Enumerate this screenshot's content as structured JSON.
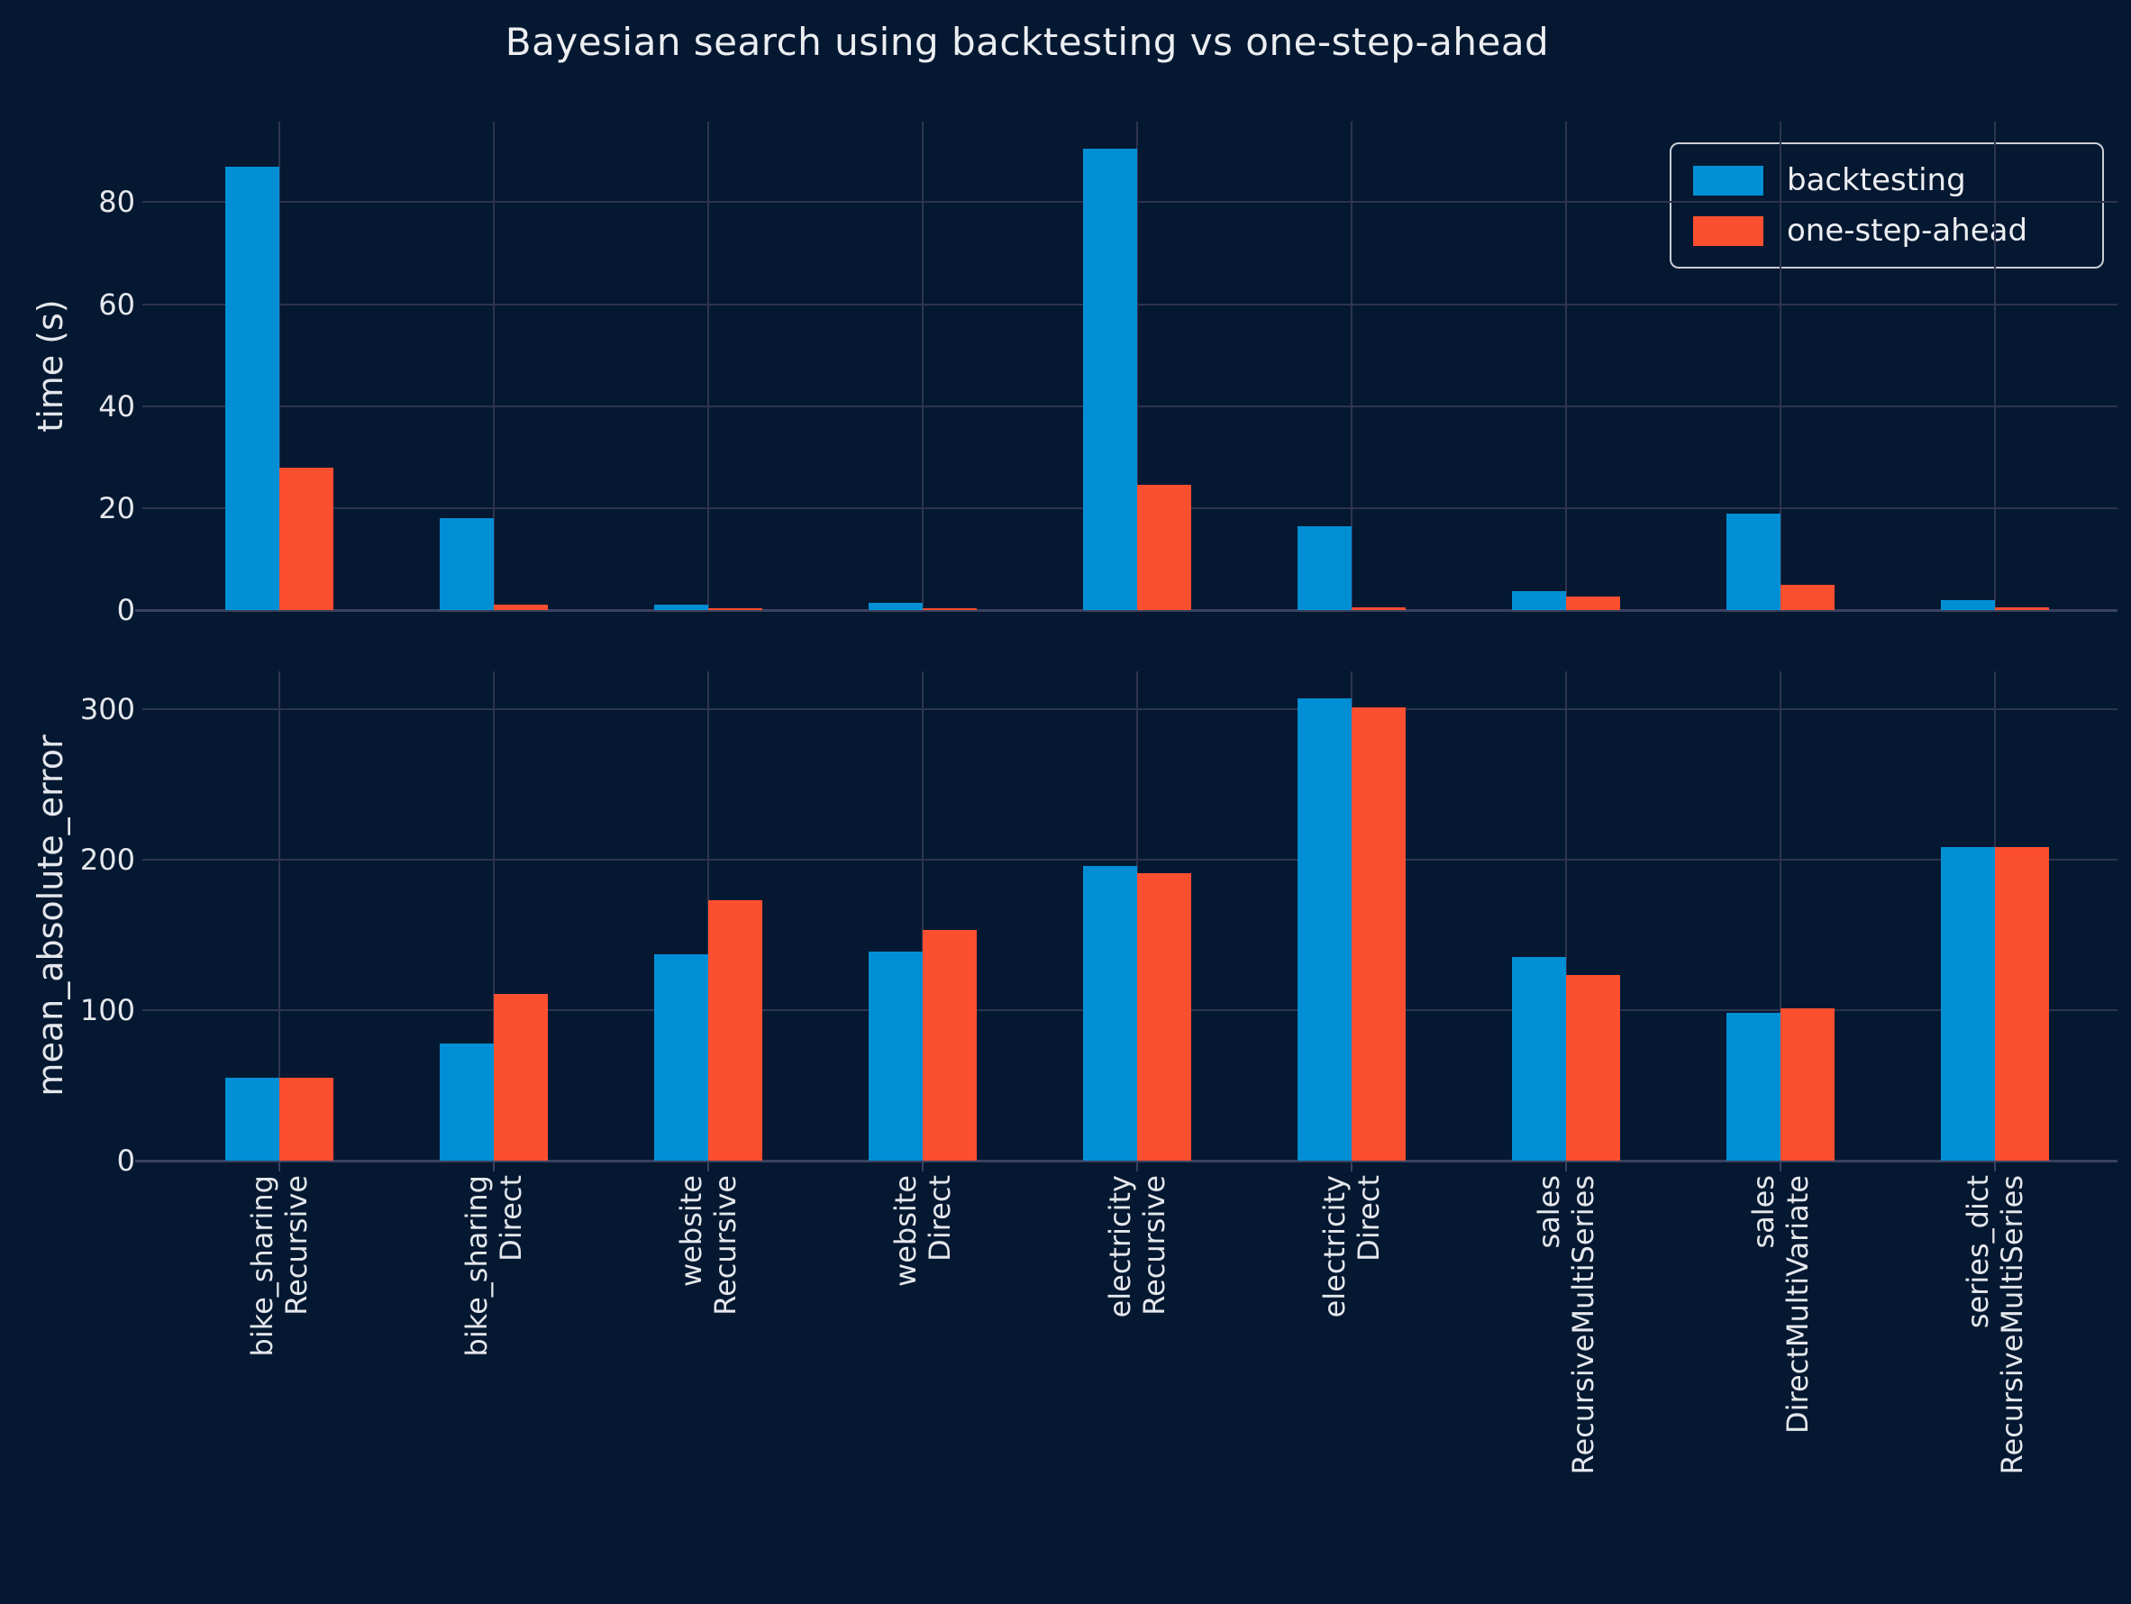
{
  "figure": {
    "title": "Bayesian search using backtesting vs one-step-ahead",
    "background_color": "#051831",
    "grid_color": "#2e3450",
    "text_color": "#e4e7ec",
    "legend": {
      "position": "top-right",
      "entries": [
        {
          "label": "backtesting",
          "color": "#008fd5"
        },
        {
          "label": "one-step-ahead",
          "color": "#fc4f30"
        }
      ]
    }
  },
  "chart_data": [
    {
      "type": "bar",
      "title": "",
      "xlabel": "",
      "ylabel": "time (s)",
      "ylim": [
        0,
        95.8
      ],
      "yticks": [
        0,
        20,
        40,
        60,
        80
      ],
      "grid": true,
      "legend_position": "upper right",
      "categories": [
        "bike_sharing\nRecursive",
        "bike_sharing\nDirect",
        "website\nRecursive",
        "website\nDirect",
        "electricity\nRecursive",
        "electricity\nDirect",
        "sales\nRecursiveMultiSeries",
        "sales\nDirectMultiVariate",
        "series_dict\nRecursiveMultiSeries"
      ],
      "series": [
        {
          "name": "backtesting",
          "color": "#008fd5",
          "values": [
            87,
            18,
            1,
            1.5,
            90.5,
            16.5,
            3.7,
            19,
            2
          ]
        },
        {
          "name": "one-step-ahead",
          "color": "#fc4f30",
          "values": [
            28,
            1,
            0.3,
            0.3,
            24.5,
            0.5,
            2.7,
            5,
            0.5
          ]
        }
      ]
    },
    {
      "type": "bar",
      "title": "",
      "xlabel": "",
      "ylabel": "mean_absolute_error",
      "ylim": [
        0,
        325
      ],
      "yticks": [
        0,
        100,
        200,
        300
      ],
      "grid": true,
      "categories": [
        "bike_sharing\nRecursive",
        "bike_sharing\nDirect",
        "website\nRecursive",
        "website\nDirect",
        "electricity\nRecursive",
        "electricity\nDirect",
        "sales\nRecursiveMultiSeries",
        "sales\nDirectMultiVariate",
        "series_dict\nRecursiveMultiSeries"
      ],
      "series": [
        {
          "name": "backtesting",
          "color": "#008fd5",
          "values": [
            55,
            78,
            137,
            139,
            196,
            307,
            135,
            98,
            208
          ]
        },
        {
          "name": "one-step-ahead",
          "color": "#fc4f30",
          "values": [
            55,
            111,
            173,
            153,
            191,
            301,
            123,
            101,
            208
          ]
        }
      ]
    }
  ]
}
